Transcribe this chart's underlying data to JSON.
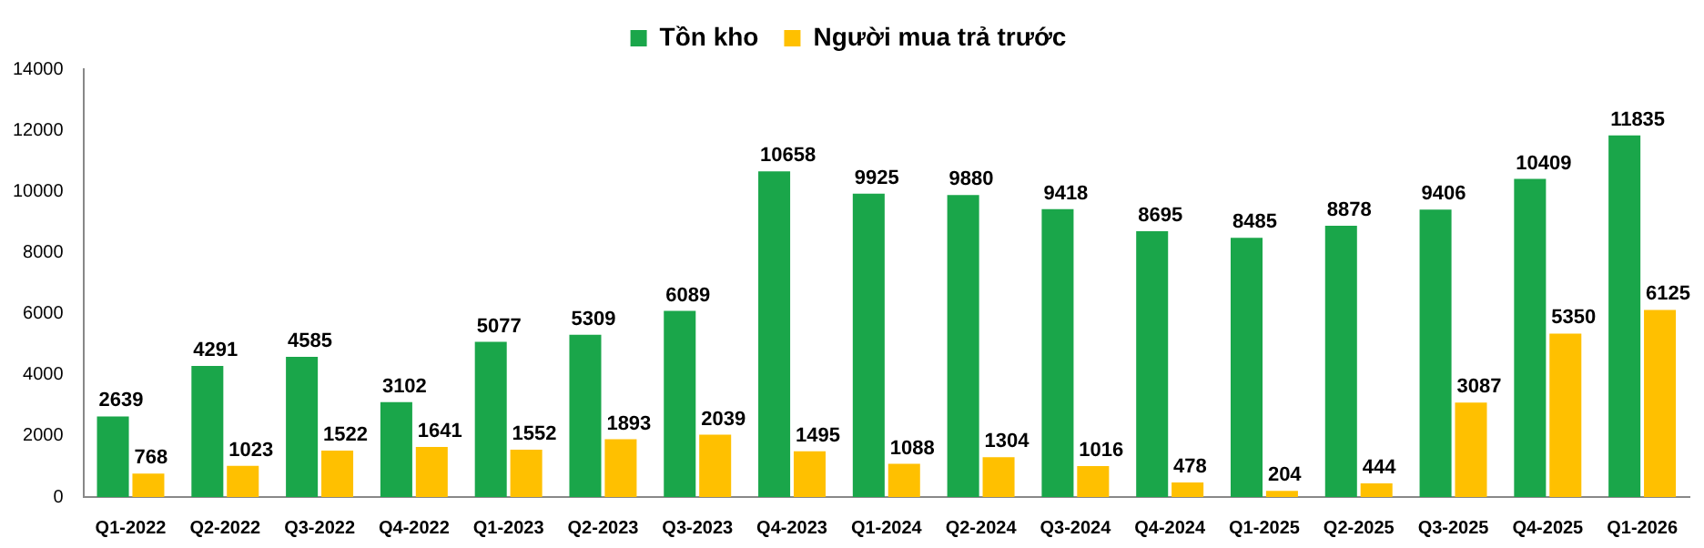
{
  "chart_data": {
    "type": "bar",
    "categories": [
      "Q1-2022",
      "Q2-2022",
      "Q3-2022",
      "Q4-2022",
      "Q1-2023",
      "Q2-2023",
      "Q3-2023",
      "Q4-2023",
      "Q1-2024",
      "Q2-2024",
      "Q3-2024",
      "Q4-2024",
      "Q1-2025",
      "Q2-2025",
      "Q3-2025",
      "Q4-2025",
      "Q1-2026"
    ],
    "series": [
      {
        "name": "Tồn kho",
        "color": "#1aa64a",
        "values": [
          2639,
          4291,
          4585,
          3102,
          5077,
          5309,
          6089,
          10658,
          9925,
          9880,
          9418,
          8695,
          8485,
          8878,
          9406,
          10409,
          11835
        ]
      },
      {
        "name": "Người mua trả trước",
        "color": "#ffc000",
        "values": [
          768,
          1023,
          1522,
          1641,
          1552,
          1893,
          2039,
          1495,
          1088,
          1304,
          1016,
          478,
          204,
          444,
          3087,
          5350,
          6125
        ]
      }
    ],
    "ylim": [
      0,
      14000
    ],
    "yticks": [
      0,
      2000,
      4000,
      6000,
      8000,
      10000,
      12000,
      14000
    ],
    "grid": false,
    "legend": "top",
    "data_labels": true
  }
}
